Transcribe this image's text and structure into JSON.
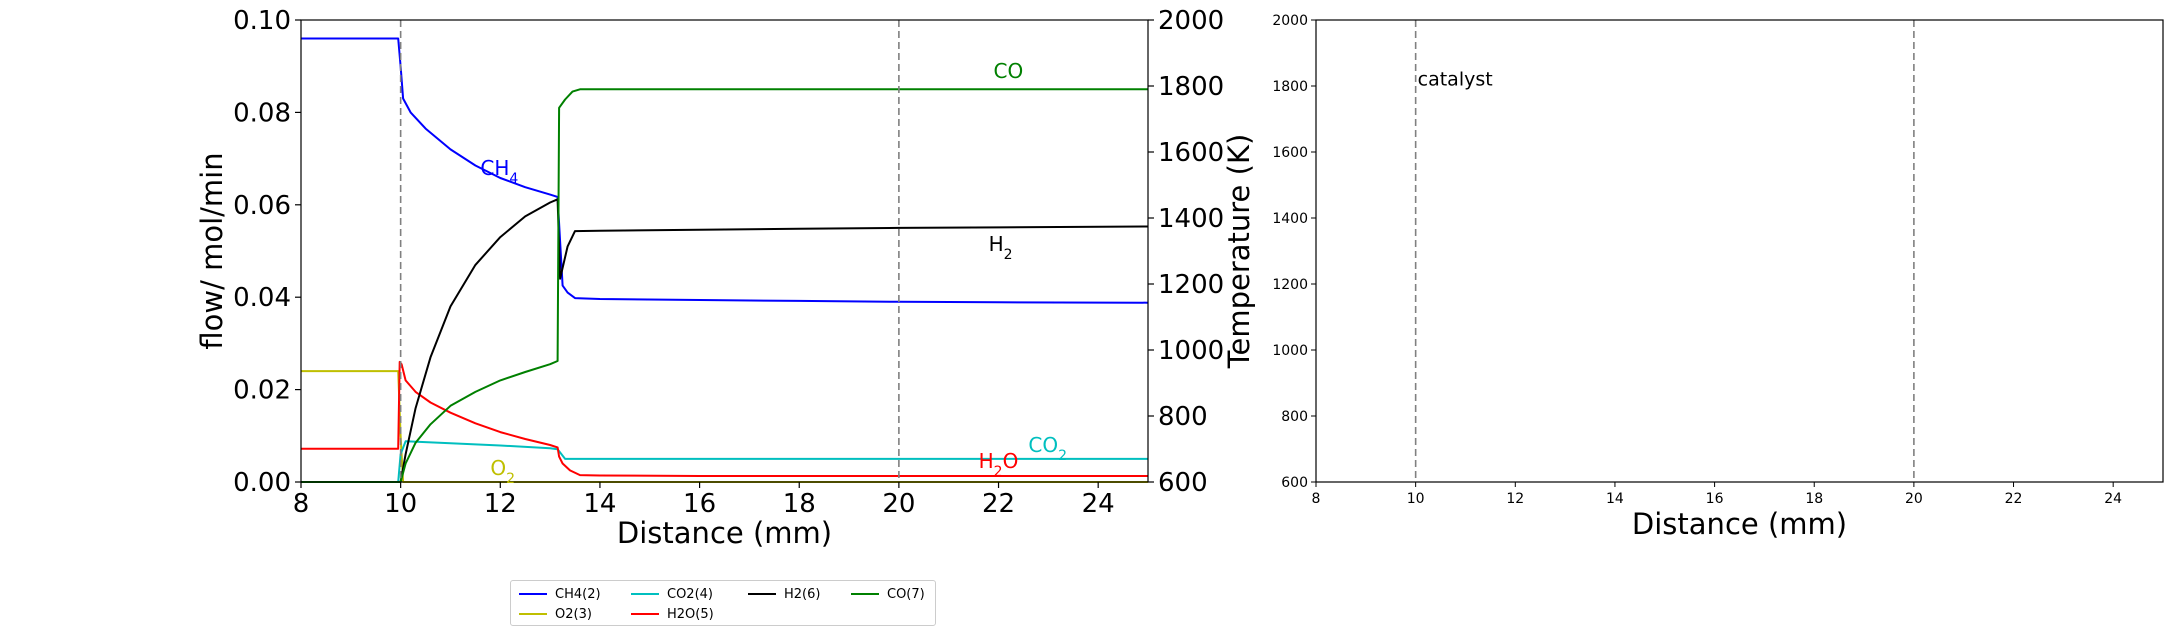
{
  "chart_data": [
    {
      "type": "line",
      "xlabel": "Distance (mm)",
      "ylabel": "flow/ mol/min",
      "y2label": "Temperature (K)",
      "xlim": [
        8,
        25
      ],
      "ylim": [
        0,
        0.1
      ],
      "y2lim": [
        600,
        2000
      ],
      "xticks": [
        "8",
        "10",
        "12",
        "14",
        "16",
        "18",
        "20",
        "22",
        "24"
      ],
      "yticks": [
        "0.00",
        "0.02",
        "0.04",
        "0.06",
        "0.08",
        "0.10"
      ],
      "y2ticks": [
        "600",
        "800",
        "1000",
        "1200",
        "1400",
        "1600",
        "1800",
        "2000"
      ],
      "vlines": [
        10,
        20
      ],
      "series": [
        {
          "name": "CH4(2)",
          "color": "#0000ff",
          "x": [
            8,
            9.95,
            10.0,
            10.05,
            10.2,
            10.5,
            11,
            11.5,
            12,
            12.5,
            13,
            13.15,
            13.25,
            13.35,
            13.5,
            14,
            16,
            18,
            20,
            22,
            25
          ],
          "y": [
            0.096,
            0.096,
            0.09,
            0.083,
            0.08,
            0.0765,
            0.072,
            0.0685,
            0.0658,
            0.0638,
            0.0622,
            0.0617,
            0.0425,
            0.041,
            0.0398,
            0.0396,
            0.0394,
            0.0392,
            0.039,
            0.0389,
            0.0388
          ]
        },
        {
          "name": "O2(3)",
          "color": "#bfbf00",
          "x": [
            8,
            9.95,
            10.0,
            10.05,
            12,
            25
          ],
          "y": [
            0.024,
            0.024,
            0.01,
            0.0,
            0.0,
            0.0
          ]
        },
        {
          "name": "CO2(4)",
          "color": "#00bfbf",
          "x": [
            8,
            9.95,
            10.0,
            10.1,
            11,
            12,
            13,
            13.15,
            13.3,
            16,
            20,
            25
          ],
          "y": [
            0.0,
            0.0,
            0.006,
            0.0088,
            0.0084,
            0.0079,
            0.0073,
            0.0071,
            0.005,
            0.005,
            0.005,
            0.005
          ]
        },
        {
          "name": "H2O(5)",
          "color": "#ff0000",
          "x": [
            8,
            9.95,
            9.98,
            10.02,
            10.1,
            10.3,
            10.6,
            11,
            11.5,
            12,
            12.5,
            13,
            13.15,
            13.18,
            13.25,
            13.4,
            13.6,
            14,
            16,
            18,
            20,
            22,
            25
          ],
          "y": [
            0.0072,
            0.0072,
            0.026,
            0.0255,
            0.022,
            0.0195,
            0.0172,
            0.015,
            0.0127,
            0.0108,
            0.0093,
            0.008,
            0.0075,
            0.0055,
            0.004,
            0.0025,
            0.0015,
            0.0014,
            0.0013,
            0.0013,
            0.0013,
            0.0013,
            0.0013
          ]
        },
        {
          "name": "H2(6)",
          "color": "#000000",
          "x": [
            8,
            9.95,
            10.0,
            10.1,
            10.3,
            10.6,
            11,
            11.5,
            12,
            12.5,
            13,
            13.15,
            13.2,
            13.35,
            13.5,
            14,
            16,
            18,
            20,
            22,
            25
          ],
          "y": [
            0.0,
            0.0,
            0.0,
            0.006,
            0.016,
            0.027,
            0.038,
            0.047,
            0.053,
            0.0575,
            0.0605,
            0.0612,
            0.044,
            0.051,
            0.0543,
            0.0544,
            0.0546,
            0.0548,
            0.055,
            0.0551,
            0.0553
          ]
        },
        {
          "name": "CO(7)",
          "color": "#008000",
          "x": [
            8,
            9.95,
            10.0,
            10.1,
            10.3,
            10.6,
            11,
            11.5,
            12,
            12.5,
            13,
            13.15,
            13.18,
            13.3,
            13.45,
            13.6,
            14,
            16,
            20,
            25
          ],
          "y": [
            0.0,
            0.0,
            0.0,
            0.004,
            0.0085,
            0.0125,
            0.0165,
            0.0195,
            0.022,
            0.0238,
            0.0255,
            0.0262,
            0.081,
            0.0828,
            0.0845,
            0.085,
            0.085,
            0.085,
            0.085,
            0.085
          ]
        }
      ],
      "annotations": [
        {
          "label": "CH",
          "sub": "4",
          "x": 11.6,
          "y": 0.0665,
          "color": "#0000ff"
        },
        {
          "label": "CO",
          "sub": "",
          "x": 21.9,
          "y": 0.0875,
          "color": "#008000"
        },
        {
          "label": "H",
          "sub": "2",
          "x": 21.8,
          "y": 0.05,
          "color": "#000000"
        },
        {
          "label": "CO",
          "sub": "2",
          "x": 22.6,
          "y": 0.0065,
          "color": "#00bfbf"
        },
        {
          "label": "H",
          "sub": "2",
          "suffix": "O",
          "x": 21.6,
          "y": 0.003,
          "color": "#ff0000"
        },
        {
          "label": "O",
          "sub": "2",
          "x": 11.8,
          "y": 0.0015,
          "color": "#bfbf00"
        }
      ]
    },
    {
      "type": "line",
      "xlabel": "Distance (mm)",
      "xlim": [
        8,
        25
      ],
      "ylim": [
        600,
        2000
      ],
      "xticks": [
        "8",
        "10",
        "12",
        "14",
        "16",
        "18",
        "20",
        "22",
        "24"
      ],
      "yticks": [
        "600",
        "800",
        "1000",
        "1200",
        "1400",
        "1600",
        "1800",
        "2000"
      ],
      "vlines": [
        10,
        20
      ],
      "annotations": [
        {
          "label": "catalyst",
          "x": 10.0,
          "y": 1820
        }
      ],
      "series": []
    }
  ],
  "legend": [
    {
      "label": "CH4(2)",
      "color": "#0000ff"
    },
    {
      "label": "CO2(4)",
      "color": "#00bfbf"
    },
    {
      "label": "H2(6)",
      "color": "#000000"
    },
    {
      "label": "CO(7)",
      "color": "#008000"
    },
    {
      "label": "O2(3)",
      "color": "#bfbf00"
    },
    {
      "label": "H2O(5)",
      "color": "#ff0000"
    }
  ]
}
